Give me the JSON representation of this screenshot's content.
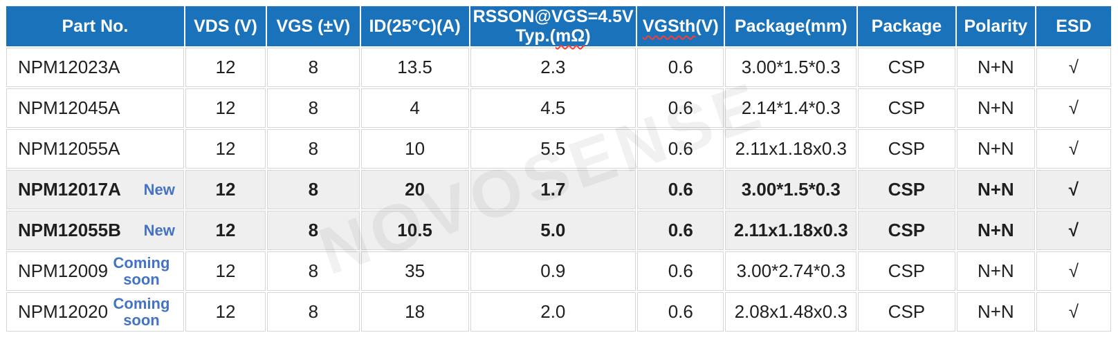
{
  "watermark": {
    "text": "NOVOSENSE"
  },
  "colors": {
    "header_bg": "#1a73ba",
    "header_text": "#ffffff",
    "status_blue": "#4472c4",
    "highlight_row_bg": "#efefef",
    "cell_border": "#d6d6d6",
    "spellcheck_red": "#ff3b30",
    "body_text": "#1f1f1f"
  },
  "table": {
    "columns": [
      {
        "id": "part",
        "label": "Part No."
      },
      {
        "id": "vds",
        "label": "VDS (V)"
      },
      {
        "id": "vgs",
        "label": "VGS (±V)"
      },
      {
        "id": "id",
        "label": "ID(25°C)(A)"
      },
      {
        "id": "rsson",
        "label_line1": "RSSON@VGS=4.5V",
        "label_line2_prefix": "Typ.(",
        "label_line2_wavy": "mΩ",
        "label_line2_suffix": ")"
      },
      {
        "id": "vgsth",
        "label_wavy": "VGSth",
        "label_suffix": "(V)"
      },
      {
        "id": "package_mm",
        "label": "Package(mm)"
      },
      {
        "id": "package",
        "label": "Package"
      },
      {
        "id": "polarity",
        "label": "Polarity"
      },
      {
        "id": "esd",
        "label": "ESD"
      }
    ],
    "rows": [
      {
        "part": "NPM12023A",
        "status": "",
        "vds": "12",
        "vgs": "8",
        "id": "13.5",
        "rsson": "2.3",
        "vgsth": "0.6",
        "package_mm": "3.00*1.5*0.3",
        "package": "CSP",
        "polarity": "N+N",
        "esd": "√",
        "highlight": false
      },
      {
        "part": "NPM12045A",
        "status": "",
        "vds": "12",
        "vgs": "8",
        "id": "4",
        "rsson": "4.5",
        "vgsth": "0.6",
        "package_mm": "2.14*1.4*0.3",
        "package": "CSP",
        "polarity": "N+N",
        "esd": "√",
        "highlight": false
      },
      {
        "part": "NPM12055A",
        "status": "",
        "vds": "12",
        "vgs": "8",
        "id": "10",
        "rsson": "5.5",
        "vgsth": "0.6",
        "package_mm": "2.11x1.18x0.3",
        "package": "CSP",
        "polarity": "N+N",
        "esd": "√",
        "highlight": false
      },
      {
        "part": "NPM12017A",
        "status": "New",
        "vds": "12",
        "vgs": "8",
        "id": "20",
        "rsson": "1.7",
        "vgsth": "0.6",
        "package_mm": "3.00*1.5*0.3",
        "package": "CSP",
        "polarity": "N+N",
        "esd": "√",
        "highlight": true
      },
      {
        "part": "NPM12055B",
        "status": "New",
        "vds": "12",
        "vgs": "8",
        "id": "10.5",
        "rsson": "5.0",
        "vgsth": "0.6",
        "package_mm": "2.11x1.18x0.3",
        "package": "CSP",
        "polarity": "N+N",
        "esd": "√",
        "highlight": true
      },
      {
        "part": "NPM12009",
        "status": "Coming soon",
        "vds": "12",
        "vgs": "8",
        "id": "35",
        "rsson": "0.9",
        "vgsth": "0.6",
        "package_mm": "3.00*2.74*0.3",
        "package": "CSP",
        "polarity": "N+N",
        "esd": "√",
        "highlight": false
      },
      {
        "part": "NPM12020",
        "status": "Coming soon",
        "vds": "12",
        "vgs": "8",
        "id": "18",
        "rsson": "2.0",
        "vgsth": "0.6",
        "package_mm": "2.08x1.48x0.3",
        "package": "CSP",
        "polarity": "N+N",
        "esd": "√",
        "highlight": false
      }
    ]
  }
}
